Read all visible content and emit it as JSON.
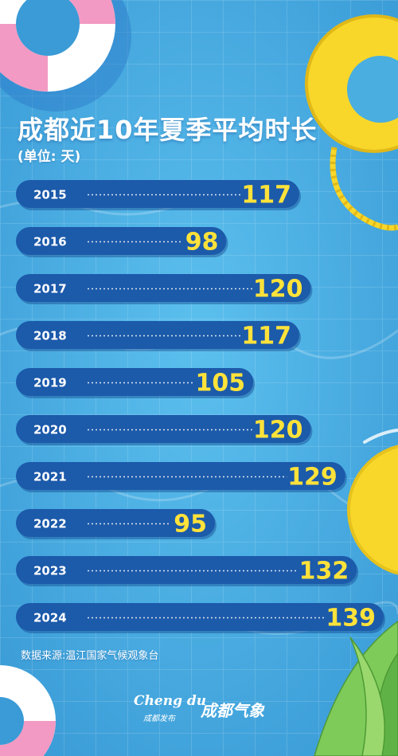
{
  "title": "成都近10年夏季平均时长",
  "unit_label": "(单位: 天)",
  "source": "数据来源:温江国家气候观象台",
  "logos": {
    "chengdu_text": "Cheng du",
    "chengdu_sub": "成都发布",
    "weather_text": "成都气象"
  },
  "colors": {
    "background": "#4aaee0",
    "bar": "#1c5aaa",
    "bar_dark": "#154a91",
    "value_text": "#ffe23a",
    "year_text": "#ffffff",
    "float_yellow": "#f8d72a",
    "float_pink": "#f29ac3"
  },
  "chart_data": {
    "type": "bar",
    "orientation": "horizontal",
    "title": "成都近10年夏季平均时长",
    "unit": "(单位: 天)",
    "categories": [
      "2015",
      "2016",
      "2017",
      "2018",
      "2019",
      "2020",
      "2021",
      "2022",
      "2023",
      "2024"
    ],
    "values": [
      117,
      98,
      120,
      117,
      105,
      120,
      129,
      95,
      132,
      139
    ]
  }
}
